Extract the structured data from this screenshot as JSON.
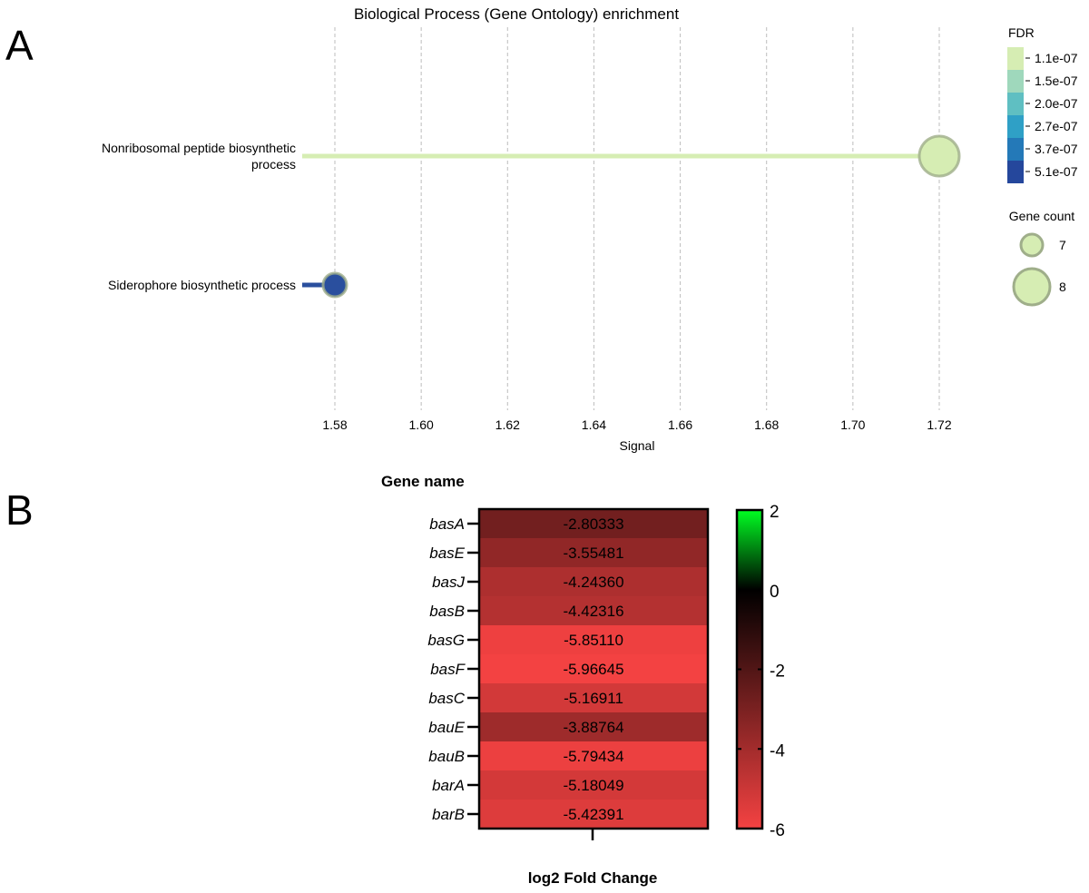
{
  "panel_labels": {
    "a": "A",
    "b": "B"
  },
  "chart_data": [
    {
      "type": "scatter",
      "subtype": "lollipop",
      "title": "Biological Process (Gene Ontology) enrichment",
      "xlabel": "Signal",
      "xlim": [
        1.58,
        1.72
      ],
      "xticks": [
        "1.58",
        "1.60",
        "1.62",
        "1.64",
        "1.66",
        "1.68",
        "1.70",
        "1.72"
      ],
      "grid": "vertical dashed",
      "points": [
        {
          "category_lines": [
            "Nonribosomal peptide biosynthetic",
            "process"
          ],
          "signal": 1.72,
          "gene_count": 8,
          "fdr": 1.1e-07,
          "color": "#d6edb3"
        },
        {
          "category_lines": [
            "Siderophore biosynthetic process"
          ],
          "signal": 1.58,
          "gene_count": 7,
          "fdr": 5.1e-07,
          "color": "#2a4f9e"
        }
      ],
      "fdr_legend": {
        "title": "FDR",
        "labels": [
          "1.1e-07",
          "1.5e-07",
          "2.0e-07",
          "2.7e-07",
          "3.7e-07",
          "5.1e-07"
        ],
        "colors": [
          "#d6edb3",
          "#9fd8bc",
          "#5fbfc2",
          "#2fa0c6",
          "#2479b8",
          "#25479c"
        ]
      },
      "size_legend": {
        "title": "Gene count",
        "labels": [
          "7",
          "8"
        ]
      },
      "legend_position": "right"
    },
    {
      "type": "heatmap",
      "title": "Gene name",
      "xlabel": "log2 Fold Change",
      "rows": [
        "basA",
        "basE",
        "basJ",
        "basB",
        "basG",
        "basF",
        "basC",
        "bauE",
        "bauB",
        "barA",
        "barB"
      ],
      "values": [
        "-2.80333",
        "-3.55481",
        "-4.24360",
        "-4.42316",
        "-5.85110",
        "-5.96645",
        "-5.16911",
        "-3.88764",
        "-5.79434",
        "-5.18049",
        "-5.42391"
      ],
      "colorbar": {
        "range": [
          -6,
          2
        ],
        "ticks": [
          "2",
          "0",
          "-2",
          "-4",
          "-6"
        ],
        "colors": {
          "low": "#f44242",
          "mid": "#000000",
          "high": "#00ff22"
        }
      }
    }
  ]
}
